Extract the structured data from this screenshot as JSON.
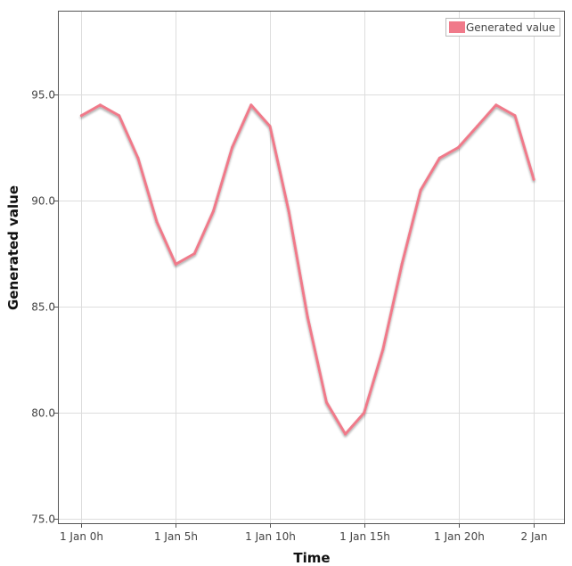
{
  "chart_data": {
    "type": "line",
    "xlabel": "Time",
    "ylabel": "Generated value",
    "x_ticks": [
      "1 Jan 0h",
      "1 Jan 5h",
      "1 Jan 10h",
      "1 Jan 15h",
      "1 Jan 20h",
      "2 Jan"
    ],
    "y_ticks": [
      "75.0",
      "80.0",
      "85.0",
      "90.0",
      "95.0"
    ],
    "ylim": [
      74.8,
      98.9
    ],
    "xlim_hours": [
      -1.2,
      25.6
    ],
    "legend": {
      "position": "top-right",
      "entries": [
        "Generated value"
      ]
    },
    "grid": true,
    "series": [
      {
        "name": "Generated value",
        "color": "#f07a8a",
        "x": [
          "1 Jan 0h",
          "1 Jan 1h",
          "1 Jan 2h",
          "1 Jan 3h",
          "1 Jan 4h",
          "1 Jan 5h",
          "1 Jan 6h",
          "1 Jan 7h",
          "1 Jan 8h",
          "1 Jan 9h",
          "1 Jan 10h",
          "1 Jan 11h",
          "1 Jan 12h",
          "1 Jan 13h",
          "1 Jan 14h",
          "1 Jan 15h",
          "1 Jan 16h",
          "1 Jan 17h",
          "1 Jan 18h",
          "1 Jan 19h",
          "1 Jan 20h",
          "1 Jan 21h",
          "1 Jan 22h",
          "1 Jan 23h",
          "2 Jan 0h"
        ],
        "values": [
          94.0,
          94.5,
          94.0,
          92.0,
          89.0,
          87.0,
          87.5,
          89.5,
          92.5,
          94.5,
          93.5,
          89.5,
          84.5,
          80.5,
          79.0,
          80.0,
          83.0,
          87.0,
          90.5,
          92.0,
          92.5,
          93.5,
          94.5,
          94.0,
          91.0
        ]
      }
    ]
  }
}
